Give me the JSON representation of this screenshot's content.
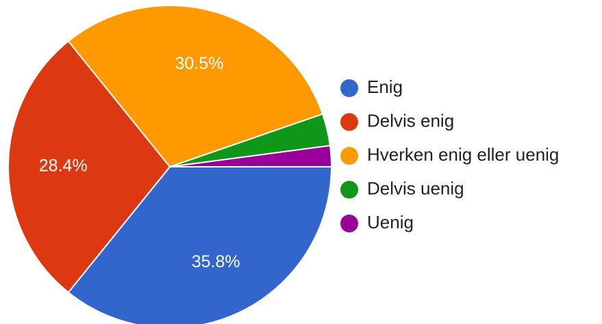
{
  "chart_data": {
    "type": "pie",
    "categories": [
      "Enig",
      "Delvis enig",
      "Hverken enig eller uenig",
      "Delvis uenig",
      "Uenig"
    ],
    "values": [
      35.8,
      28.4,
      30.5,
      3.2,
      2.1
    ],
    "value_labels": [
      "35.8%",
      "28.4%",
      "30.5%",
      null,
      null
    ],
    "colors": [
      "#3366cc",
      "#dc3912",
      "#ff9900",
      "#109618",
      "#990099"
    ],
    "legend": "right"
  }
}
